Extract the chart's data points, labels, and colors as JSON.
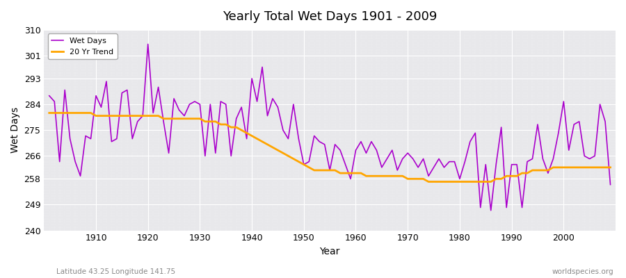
{
  "title": "Yearly Total Wet Days 1901 - 2009",
  "xlabel": "Year",
  "ylabel": "Wet Days",
  "subtitle_left": "Latitude 43.25 Longitude 141.75",
  "subtitle_right": "worldspecies.org",
  "line_color": "#aa00cc",
  "trend_color": "#FFA500",
  "bg_color": "#f0f0f0",
  "ylim": [
    240,
    310
  ],
  "yticks": [
    240,
    249,
    258,
    266,
    275,
    284,
    293,
    301,
    310
  ],
  "xlim": [
    1900,
    2010
  ],
  "xticks": [
    1910,
    1920,
    1930,
    1940,
    1950,
    1960,
    1970,
    1980,
    1990,
    2000
  ],
  "years": [
    1901,
    1902,
    1903,
    1904,
    1905,
    1906,
    1907,
    1908,
    1909,
    1910,
    1911,
    1912,
    1913,
    1914,
    1915,
    1916,
    1917,
    1918,
    1919,
    1920,
    1921,
    1922,
    1923,
    1924,
    1925,
    1926,
    1927,
    1928,
    1929,
    1930,
    1931,
    1932,
    1933,
    1934,
    1935,
    1936,
    1937,
    1938,
    1939,
    1940,
    1941,
    1942,
    1943,
    1944,
    1945,
    1946,
    1947,
    1948,
    1949,
    1950,
    1951,
    1952,
    1953,
    1954,
    1955,
    1956,
    1957,
    1958,
    1959,
    1960,
    1961,
    1962,
    1963,
    1964,
    1965,
    1966,
    1967,
    1968,
    1969,
    1970,
    1971,
    1972,
    1973,
    1974,
    1975,
    1976,
    1977,
    1978,
    1979,
    1980,
    1981,
    1982,
    1983,
    1984,
    1985,
    1986,
    1987,
    1988,
    1989,
    1990,
    1991,
    1992,
    1993,
    1994,
    1995,
    1996,
    1997,
    1998,
    1999,
    2000,
    2001,
    2002,
    2003,
    2004,
    2005,
    2006,
    2007,
    2008,
    2009
  ],
  "wet_days": [
    287,
    285,
    264,
    289,
    272,
    264,
    259,
    273,
    272,
    287,
    283,
    292,
    271,
    272,
    288,
    289,
    272,
    278,
    280,
    305,
    281,
    290,
    278,
    267,
    286,
    282,
    280,
    284,
    285,
    284,
    266,
    284,
    267,
    285,
    284,
    266,
    279,
    283,
    272,
    293,
    285,
    297,
    280,
    286,
    283,
    275,
    272,
    284,
    272,
    263,
    264,
    273,
    271,
    270,
    261,
    270,
    268,
    263,
    258,
    268,
    271,
    267,
    271,
    268,
    262,
    265,
    268,
    261,
    265,
    267,
    265,
    262,
    265,
    259,
    262,
    265,
    262,
    264,
    264,
    258,
    264,
    271,
    274,
    248,
    263,
    247,
    263,
    276,
    248,
    263,
    263,
    248,
    264,
    265,
    277,
    265,
    260,
    265,
    274,
    285,
    268,
    277,
    278,
    266,
    265,
    266,
    284,
    278,
    256
  ],
  "trend": [
    281,
    281,
    281,
    281,
    281,
    281,
    281,
    281,
    281,
    280,
    280,
    280,
    280,
    280,
    280,
    280,
    280,
    280,
    280,
    280,
    280,
    280,
    279,
    279,
    279,
    279,
    279,
    279,
    279,
    279,
    278,
    278,
    278,
    277,
    277,
    276,
    276,
    275,
    274,
    273,
    272,
    271,
    270,
    269,
    268,
    267,
    266,
    265,
    264,
    263,
    262,
    261,
    261,
    261,
    261,
    261,
    260,
    260,
    260,
    260,
    260,
    259,
    259,
    259,
    259,
    259,
    259,
    259,
    259,
    258,
    258,
    258,
    258,
    257,
    257,
    257,
    257,
    257,
    257,
    257,
    257,
    257,
    257,
    257,
    257,
    257,
    258,
    258,
    259,
    259,
    259,
    260,
    260,
    261,
    261,
    261,
    261,
    262,
    262,
    262,
    262,
    262,
    262,
    262,
    262,
    262,
    262,
    262,
    262
  ]
}
